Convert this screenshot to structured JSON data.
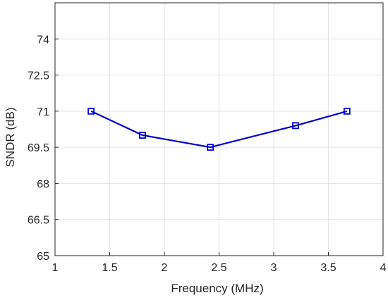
{
  "chart_data": {
    "type": "line",
    "title": "",
    "xlabel": "Frequency (MHz)",
    "ylabel": "SNDR (dB)",
    "xlim": [
      1,
      4
    ],
    "ylim": [
      65,
      75.5
    ],
    "xticks": [
      1,
      1.5,
      2,
      2.5,
      3,
      3.5,
      4
    ],
    "xtick_labels": [
      "1",
      "1.5",
      "2",
      "2.5",
      "3",
      "3.5",
      "4"
    ],
    "yticks": [
      65,
      66.5,
      68,
      69.5,
      71,
      72.5,
      74
    ],
    "ytick_labels": [
      "65",
      "66.5",
      "68",
      "69.5",
      "71",
      "72.5",
      "74"
    ],
    "grid": true,
    "series": [
      {
        "x": [
          1.33,
          1.8,
          2.42,
          3.2,
          3.67
        ],
        "y": [
          71.0,
          70.0,
          69.5,
          70.4,
          71.0
        ],
        "color": "#0000cd",
        "marker": "square"
      }
    ]
  }
}
